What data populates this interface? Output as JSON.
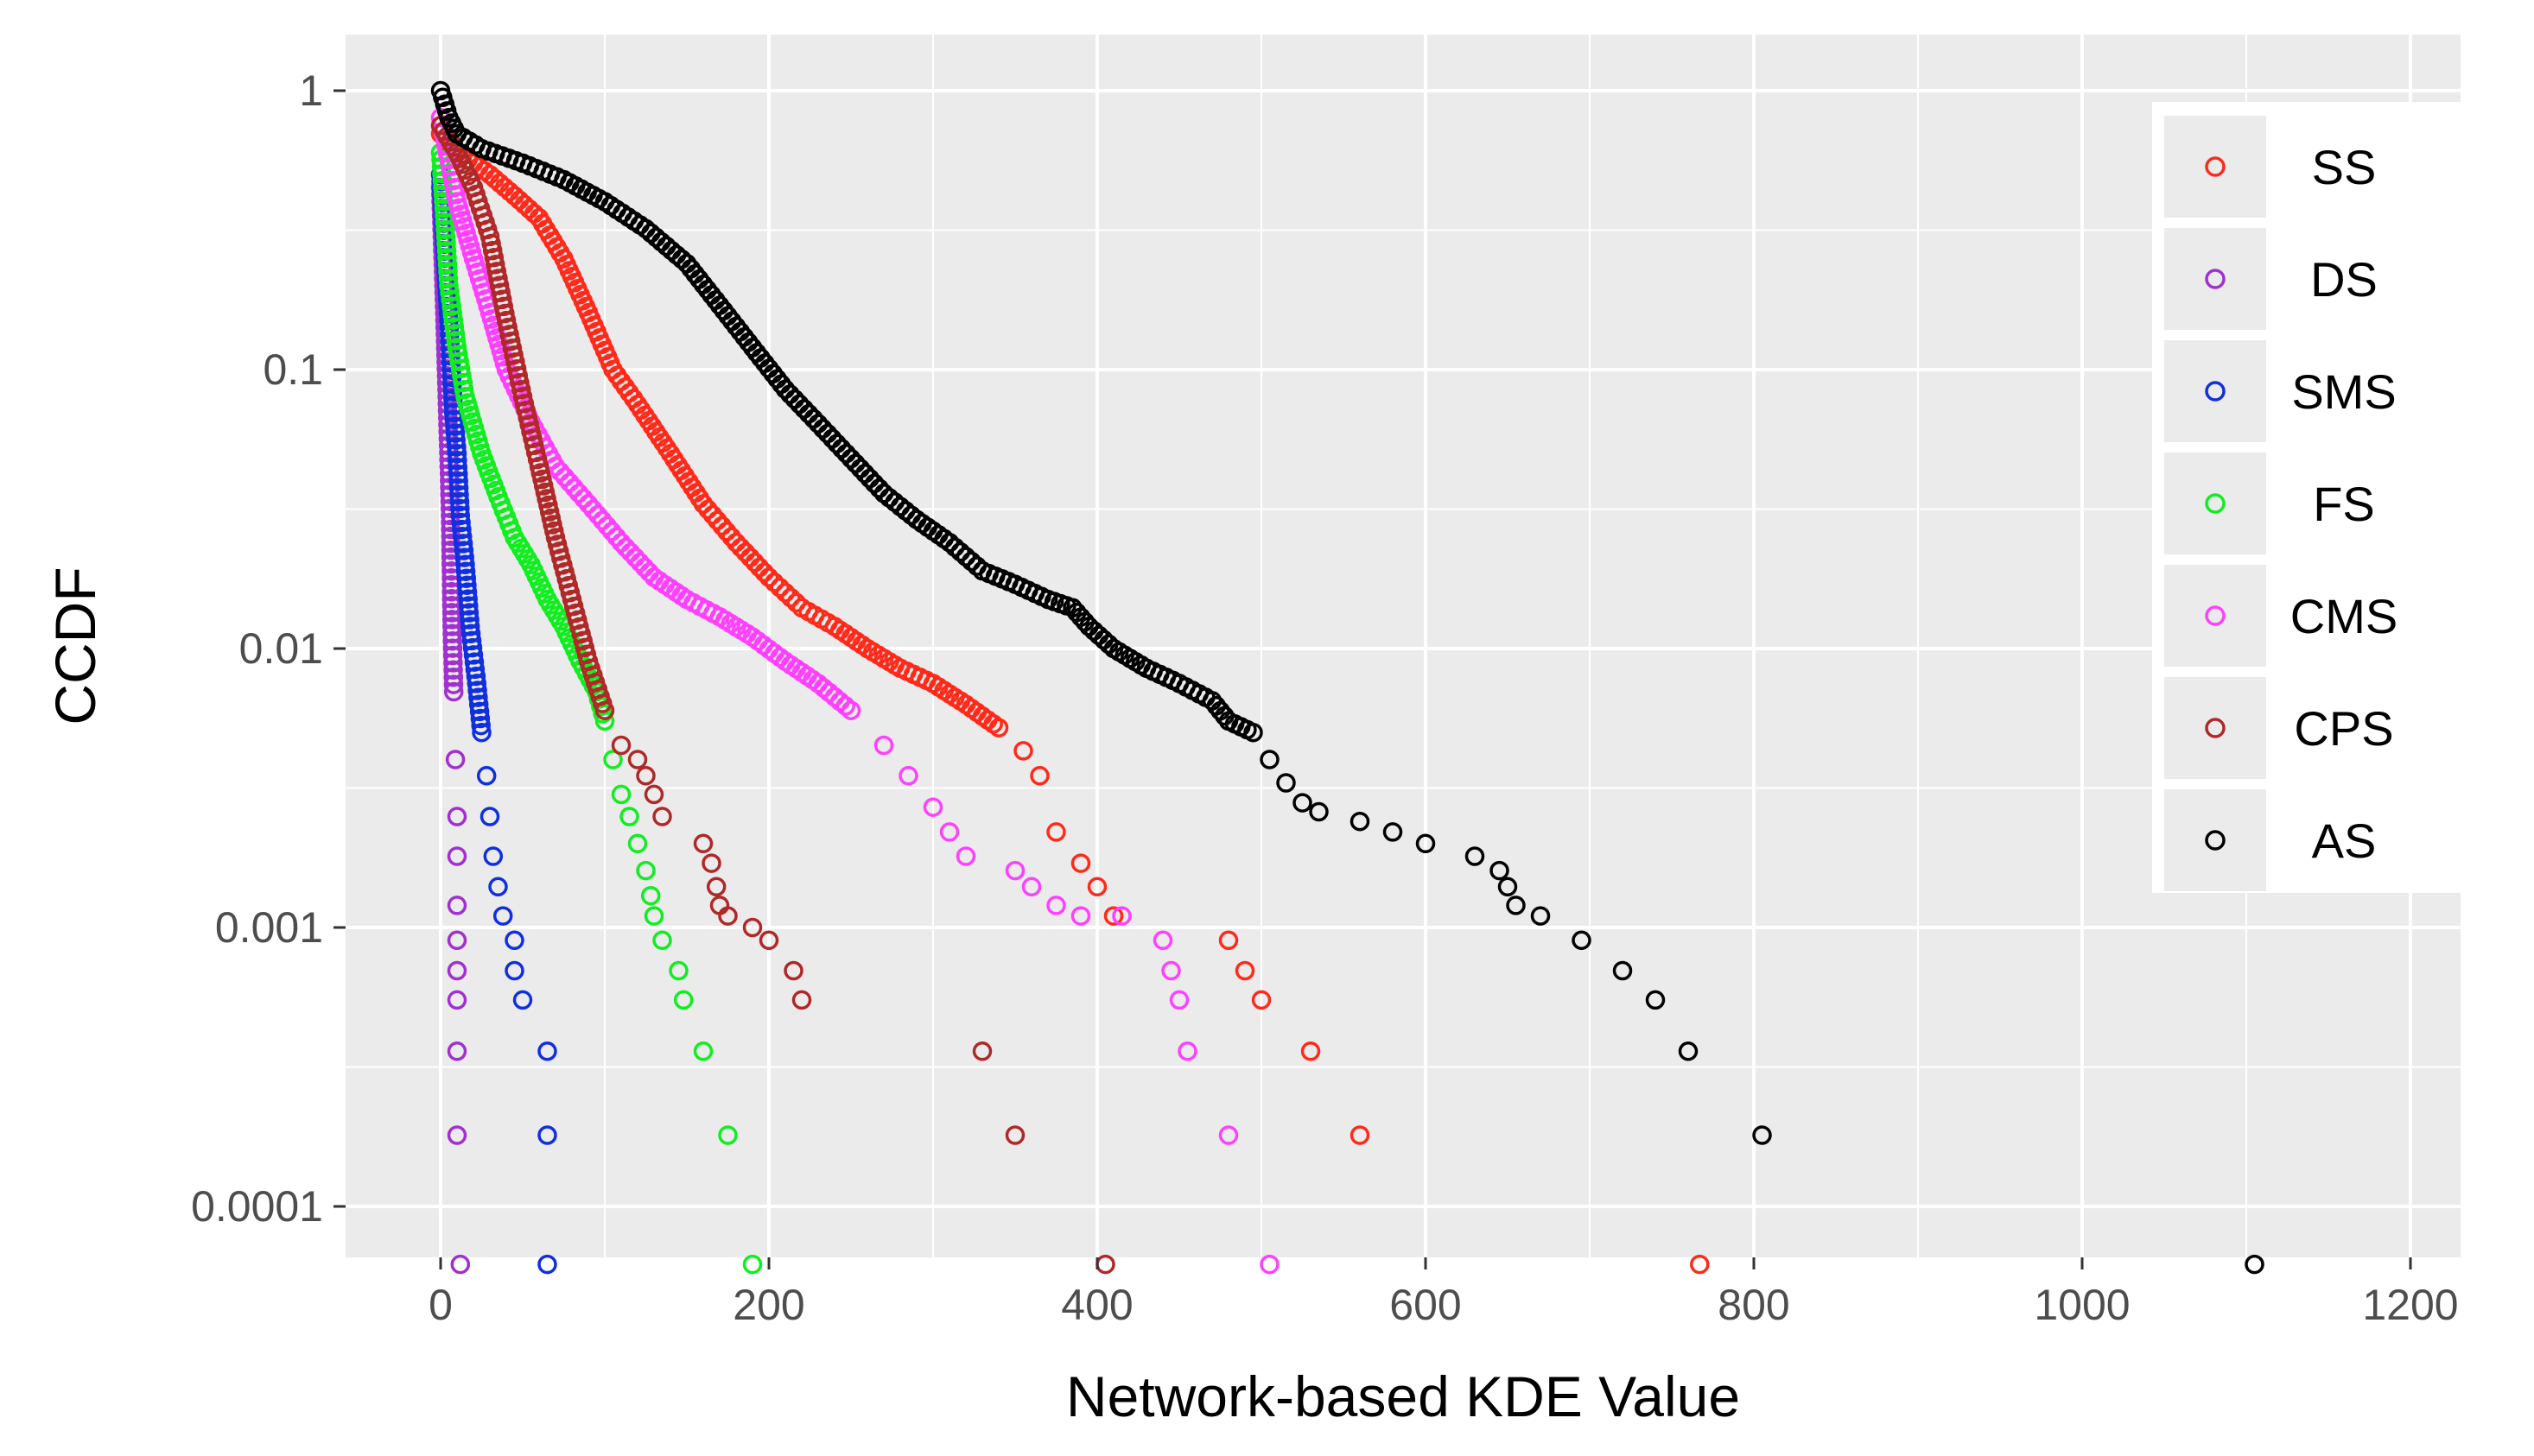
{
  "chart_data": {
    "type": "scatter",
    "xlabel": "Network-based KDE Value",
    "ylabel": "CCDF",
    "x_scale": "linear",
    "y_scale": "log10",
    "xlim": [
      -75,
      1250
    ],
    "ylim": [
      6e-05,
      1.6
    ],
    "x_ticks": [
      0,
      200,
      400,
      600,
      800,
      1000,
      1200
    ],
    "x_tick_labels": [
      "0",
      "200",
      "400",
      "600",
      "800",
      "1000",
      "1200"
    ],
    "y_ticks": [
      1,
      0.1,
      0.01,
      0.001,
      0.0001
    ],
    "y_tick_labels": [
      "1",
      "0.1",
      "0.01",
      "0.001",
      "0.0001"
    ],
    "grid": true,
    "legend_position": "top-right",
    "marker": "open-circle",
    "series": [
      {
        "name": "SS",
        "color": "#ff2a1a",
        "points": [
          [
            0,
            0.7
          ],
          [
            10,
            0.6
          ],
          [
            20,
            0.55
          ],
          [
            30,
            0.5
          ],
          [
            45,
            0.42
          ],
          [
            60,
            0.35
          ],
          [
            75,
            0.25
          ],
          [
            90,
            0.16
          ],
          [
            105,
            0.1
          ],
          [
            120,
            0.075
          ],
          [
            140,
            0.05
          ],
          [
            160,
            0.033
          ],
          [
            180,
            0.024
          ],
          [
            200,
            0.018
          ],
          [
            220,
            0.014
          ],
          [
            240,
            0.012
          ],
          [
            260,
            0.01
          ],
          [
            280,
            0.0085
          ],
          [
            300,
            0.0075
          ],
          [
            320,
            0.0063
          ],
          [
            340,
            0.0052
          ],
          [
            355,
            0.0043
          ],
          [
            365,
            0.0035
          ],
          [
            375,
            0.0022
          ],
          [
            390,
            0.0017
          ],
          [
            400,
            0.0014
          ],
          [
            410,
            0.0011
          ],
          [
            480,
            0.0009
          ],
          [
            490,
            0.0007
          ],
          [
            500,
            0.00055
          ],
          [
            530,
            0.00036
          ],
          [
            560,
            0.00018
          ],
          [
            767,
            6.2e-05
          ]
        ]
      },
      {
        "name": "DS",
        "color": "#a030d0",
        "points": [
          [
            0,
            0.45
          ],
          [
            2,
            0.2
          ],
          [
            4,
            0.08
          ],
          [
            6,
            0.03
          ],
          [
            7,
            0.012
          ],
          [
            8,
            0.007
          ],
          [
            9,
            0.004
          ],
          [
            10,
            0.0025
          ],
          [
            10,
            0.0018
          ],
          [
            10,
            0.0012
          ],
          [
            10,
            0.0009
          ],
          [
            10,
            0.0007
          ],
          [
            10,
            0.00055
          ],
          [
            10,
            0.00036
          ],
          [
            10,
            0.00018
          ],
          [
            12,
            6.2e-05
          ]
        ]
      },
      {
        "name": "SMS",
        "color": "#1030e0",
        "points": [
          [
            0,
            0.5
          ],
          [
            5,
            0.15
          ],
          [
            8,
            0.07
          ],
          [
            10,
            0.05
          ],
          [
            12,
            0.03
          ],
          [
            15,
            0.02
          ],
          [
            18,
            0.012
          ],
          [
            22,
            0.0075
          ],
          [
            25,
            0.005
          ],
          [
            28,
            0.0035
          ],
          [
            30,
            0.0025
          ],
          [
            32,
            0.0018
          ],
          [
            35,
            0.0014
          ],
          [
            38,
            0.0011
          ],
          [
            45,
            0.0009
          ],
          [
            45,
            0.0007
          ],
          [
            50,
            0.00055
          ],
          [
            65,
            0.00036
          ],
          [
            65,
            0.00018
          ],
          [
            65,
            6.2e-05
          ]
        ]
      },
      {
        "name": "FS",
        "color": "#10ee20",
        "points": [
          [
            0,
            0.6
          ],
          [
            5,
            0.2
          ],
          [
            10,
            0.12
          ],
          [
            15,
            0.08
          ],
          [
            25,
            0.05
          ],
          [
            35,
            0.035
          ],
          [
            45,
            0.025
          ],
          [
            55,
            0.02
          ],
          [
            65,
            0.015
          ],
          [
            75,
            0.012
          ],
          [
            85,
            0.009
          ],
          [
            95,
            0.007
          ],
          [
            100,
            0.0055
          ],
          [
            105,
            0.004
          ],
          [
            110,
            0.003
          ],
          [
            115,
            0.0025
          ],
          [
            120,
            0.002
          ],
          [
            125,
            0.0016
          ],
          [
            128,
            0.0013
          ],
          [
            130,
            0.0011
          ],
          [
            135,
            0.0009
          ],
          [
            145,
            0.0007
          ],
          [
            148,
            0.00055
          ],
          [
            160,
            0.00036
          ],
          [
            175,
            0.00018
          ],
          [
            190,
            6.2e-05
          ]
        ]
      },
      {
        "name": "CMS",
        "color": "#ff40ff",
        "points": [
          [
            0,
            0.8
          ],
          [
            10,
            0.4
          ],
          [
            20,
            0.25
          ],
          [
            30,
            0.16
          ],
          [
            40,
            0.1
          ],
          [
            55,
            0.065
          ],
          [
            70,
            0.045
          ],
          [
            90,
            0.033
          ],
          [
            110,
            0.024
          ],
          [
            130,
            0.018
          ],
          [
            150,
            0.015
          ],
          [
            170,
            0.013
          ],
          [
            190,
            0.011
          ],
          [
            210,
            0.009
          ],
          [
            230,
            0.0075
          ],
          [
            250,
            0.006
          ],
          [
            270,
            0.0045
          ],
          [
            285,
            0.0035
          ],
          [
            300,
            0.0027
          ],
          [
            310,
            0.0022
          ],
          [
            320,
            0.0018
          ],
          [
            350,
            0.0016
          ],
          [
            360,
            0.0014
          ],
          [
            375,
            0.0012
          ],
          [
            390,
            0.0011
          ],
          [
            415,
            0.0011
          ],
          [
            440,
            0.0009
          ],
          [
            445,
            0.0007
          ],
          [
            450,
            0.00055
          ],
          [
            455,
            0.00036
          ],
          [
            480,
            0.00018
          ],
          [
            505,
            6.2e-05
          ]
        ]
      },
      {
        "name": "CPS",
        "color": "#b02828",
        "points": [
          [
            0,
            0.75
          ],
          [
            10,
            0.6
          ],
          [
            20,
            0.45
          ],
          [
            30,
            0.3
          ],
          [
            40,
            0.15
          ],
          [
            50,
            0.08
          ],
          [
            60,
            0.045
          ],
          [
            70,
            0.025
          ],
          [
            80,
            0.015
          ],
          [
            90,
            0.009
          ],
          [
            100,
            0.006
          ],
          [
            110,
            0.0045
          ],
          [
            120,
            0.004
          ],
          [
            125,
            0.0035
          ],
          [
            130,
            0.003
          ],
          [
            135,
            0.0025
          ],
          [
            160,
            0.002
          ],
          [
            165,
            0.0017
          ],
          [
            168,
            0.0014
          ],
          [
            170,
            0.0012
          ],
          [
            175,
            0.0011
          ],
          [
            190,
            0.001
          ],
          [
            200,
            0.0009
          ],
          [
            215,
            0.0007
          ],
          [
            220,
            0.00055
          ],
          [
            330,
            0.00036
          ],
          [
            350,
            0.00018
          ],
          [
            405,
            6.2e-05
          ]
        ]
      },
      {
        "name": "AS",
        "color": "#000000",
        "points": [
          [
            0,
            1.0
          ],
          [
            5,
            0.8
          ],
          [
            10,
            0.7
          ],
          [
            25,
            0.62
          ],
          [
            50,
            0.55
          ],
          [
            75,
            0.48
          ],
          [
            100,
            0.4
          ],
          [
            125,
            0.32
          ],
          [
            150,
            0.24
          ],
          [
            170,
            0.17
          ],
          [
            190,
            0.12
          ],
          [
            210,
            0.085
          ],
          [
            230,
            0.064
          ],
          [
            250,
            0.048
          ],
          [
            270,
            0.036
          ],
          [
            290,
            0.029
          ],
          [
            310,
            0.024
          ],
          [
            330,
            0.019
          ],
          [
            350,
            0.017
          ],
          [
            370,
            0.015
          ],
          [
            385,
            0.014
          ],
          [
            395,
            0.012
          ],
          [
            410,
            0.01
          ],
          [
            430,
            0.0085
          ],
          [
            450,
            0.0075
          ],
          [
            470,
            0.0065
          ],
          [
            480,
            0.0055
          ],
          [
            495,
            0.005
          ],
          [
            505,
            0.004
          ],
          [
            515,
            0.0033
          ],
          [
            525,
            0.0028
          ],
          [
            535,
            0.0026
          ],
          [
            560,
            0.0024
          ],
          [
            580,
            0.0022
          ],
          [
            600,
            0.002
          ],
          [
            630,
            0.0018
          ],
          [
            645,
            0.0016
          ],
          [
            650,
            0.0014
          ],
          [
            655,
            0.0012
          ],
          [
            670,
            0.0011
          ],
          [
            695,
            0.0009
          ],
          [
            720,
            0.0007
          ],
          [
            740,
            0.00055
          ],
          [
            760,
            0.00036
          ],
          [
            805,
            0.00018
          ],
          [
            1105,
            6.2e-05
          ]
        ]
      }
    ]
  }
}
